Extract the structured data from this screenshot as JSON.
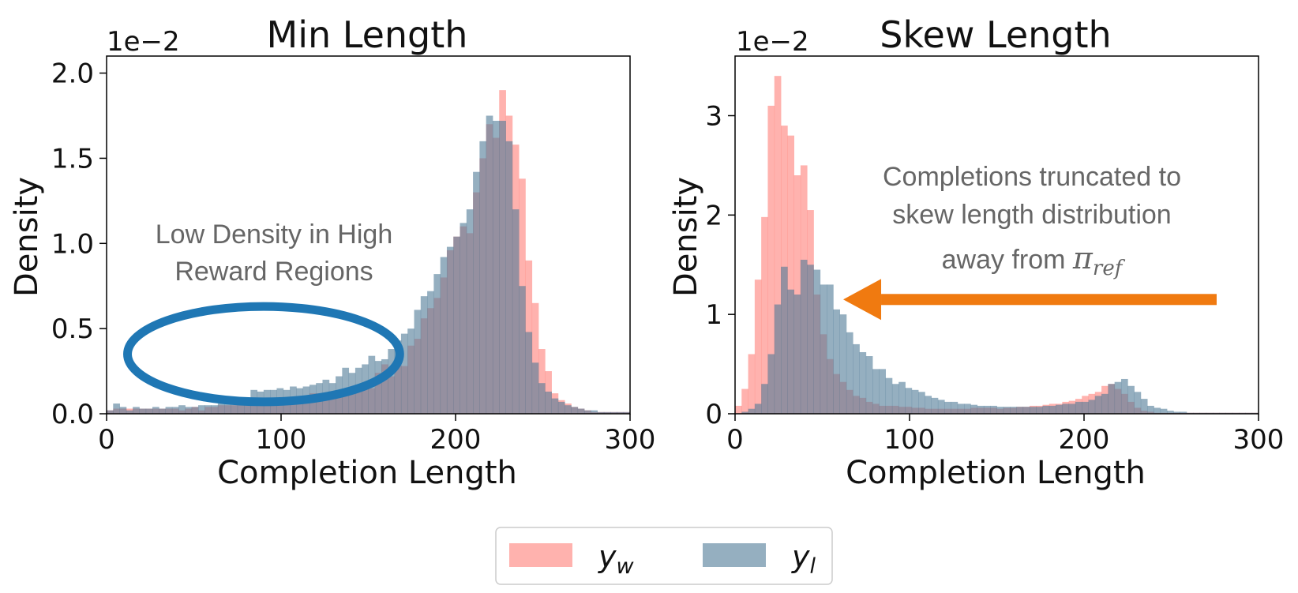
{
  "colors": {
    "yw": "#ff7f78",
    "yl": "#4f7a96",
    "ellipse": "#1f77b4",
    "arrow": "#f07a10",
    "annotation": "#666666"
  },
  "legend": {
    "placement": "bottom-center",
    "entries": [
      {
        "label_main": "y",
        "label_sub": "w"
      },
      {
        "label_main": "y",
        "label_sub": "l"
      }
    ]
  },
  "chart_data": [
    {
      "type": "histogram",
      "title": "Min Length",
      "xlabel": "Completion Length",
      "ylabel": "Density",
      "exponent_label": "1e−2",
      "xlim": [
        0,
        300
      ],
      "ylim": [
        0,
        2.1
      ],
      "bin_width": 3.75,
      "xticks": [
        0,
        100,
        200,
        300
      ],
      "yticks": [
        "0.0",
        "0.5",
        "1.0",
        "1.5",
        "2.0"
      ],
      "ytick_values": [
        0,
        0.5,
        1.0,
        1.5,
        2.0
      ],
      "grid": false,
      "annotation": {
        "text_lines": [
          "Low Density in High",
          "Reward Regions"
        ],
        "ellipse_center": [
          90,
          0.35
        ],
        "ellipse_radius": [
          78,
          0.28
        ]
      },
      "series": [
        {
          "name": "y_w",
          "values": [
            0.02,
            0.03,
            0.03,
            0.03,
            0.03,
            0.03,
            0.03,
            0.03,
            0.03,
            0.03,
            0.03,
            0.02,
            0.03,
            0.04,
            0.02,
            0.04,
            0.04,
            0.05,
            0.05,
            0.05,
            0.05,
            0.05,
            0.07,
            0.06,
            0.07,
            0.07,
            0.09,
            0.06,
            0.09,
            0.08,
            0.1,
            0.12,
            0.12,
            0.11,
            0.12,
            0.1,
            0.13,
            0.14,
            0.16,
            0.15,
            0.15,
            0.24,
            0.29,
            0.22,
            0.3,
            0.28,
            0.4,
            0.44,
            0.56,
            0.62,
            0.68,
            0.8,
            0.96,
            1.04,
            1.1,
            1.06,
            1.3,
            1.5,
            1.7,
            1.62,
            1.9,
            1.75,
            1.58,
            1.38,
            0.9,
            0.65,
            0.38,
            0.25,
            0.12,
            0.08,
            0.06,
            0.04,
            0.03,
            0.02,
            0.01,
            0.01,
            0.01,
            0.01,
            0.01,
            0.01
          ]
        },
        {
          "name": "y_l",
          "values": [
            0.02,
            0.06,
            0.04,
            0.02,
            0.04,
            0.03,
            0.03,
            0.04,
            0.03,
            0.04,
            0.04,
            0.05,
            0.04,
            0.04,
            0.05,
            0.05,
            0.05,
            0.06,
            0.07,
            0.07,
            0.07,
            0.09,
            0.14,
            0.13,
            0.14,
            0.14,
            0.15,
            0.14,
            0.16,
            0.15,
            0.16,
            0.17,
            0.18,
            0.2,
            0.18,
            0.22,
            0.27,
            0.24,
            0.27,
            0.29,
            0.34,
            0.31,
            0.32,
            0.38,
            0.43,
            0.47,
            0.5,
            0.61,
            0.69,
            0.72,
            0.82,
            0.92,
            0.98,
            1.04,
            1.12,
            1.2,
            1.42,
            1.6,
            1.75,
            1.72,
            1.72,
            1.6,
            1.2,
            0.75,
            0.48,
            0.3,
            0.18,
            0.13,
            0.09,
            0.07,
            0.05,
            0.04,
            0.03,
            0.02,
            0.02,
            0.01,
            0.01,
            0.01,
            0.01,
            0.01
          ]
        }
      ]
    },
    {
      "type": "histogram",
      "title": "Skew Length",
      "xlabel": "Completion Length",
      "ylabel": "Density",
      "exponent_label": "1e−2",
      "xlim": [
        0,
        300
      ],
      "ylim": [
        0,
        3.6
      ],
      "bin_width": 3.75,
      "xticks": [
        0,
        100,
        200,
        300
      ],
      "yticks": [
        "0",
        "1",
        "2",
        "3"
      ],
      "ytick_values": [
        0,
        1,
        2,
        3
      ],
      "grid": false,
      "annotation": {
        "text_lines": [
          "Completions truncated to",
          "skew length distribution",
          "away from "
        ],
        "symbol_main": "π",
        "symbol_sub": "ref",
        "arrow_from": [
          276,
          1.15
        ],
        "arrow_to": [
          62,
          1.15
        ]
      },
      "series": [
        {
          "name": "y_w",
          "values": [
            0.08,
            0.25,
            0.6,
            1.35,
            1.98,
            3.1,
            3.4,
            2.9,
            2.8,
            2.4,
            2.5,
            2.05,
            1.2,
            0.8,
            0.55,
            0.4,
            0.32,
            0.24,
            0.18,
            0.16,
            0.12,
            0.1,
            0.08,
            0.08,
            0.08,
            0.07,
            0.07,
            0.06,
            0.06,
            0.05,
            0.05,
            0.05,
            0.05,
            0.05,
            0.05,
            0.05,
            0.06,
            0.06,
            0.06,
            0.06,
            0.05,
            0.06,
            0.06,
            0.07,
            0.07,
            0.08,
            0.08,
            0.09,
            0.1,
            0.1,
            0.12,
            0.13,
            0.15,
            0.18,
            0.2,
            0.22,
            0.28,
            0.3,
            0.25,
            0.2,
            0.12,
            0.06,
            0.03,
            0.02,
            0.01,
            0.01,
            0.01,
            0.01,
            0.01,
            0.01,
            0.01,
            0.01,
            0.01,
            0.01,
            0.01,
            0.01,
            0.01,
            0.01,
            0.01,
            0.01
          ]
        },
        {
          "name": "y_l",
          "values": [
            0.0,
            0.02,
            0.05,
            0.1,
            0.3,
            0.6,
            1.1,
            1.48,
            1.25,
            1.2,
            1.55,
            1.5,
            1.45,
            1.3,
            1.3,
            1.05,
            1.0,
            0.82,
            0.7,
            0.62,
            0.58,
            0.45,
            0.45,
            0.36,
            0.3,
            0.32,
            0.26,
            0.24,
            0.22,
            0.18,
            0.16,
            0.14,
            0.12,
            0.12,
            0.1,
            0.1,
            0.09,
            0.08,
            0.08,
            0.08,
            0.07,
            0.07,
            0.07,
            0.07,
            0.07,
            0.07,
            0.07,
            0.08,
            0.08,
            0.09,
            0.1,
            0.1,
            0.12,
            0.12,
            0.14,
            0.18,
            0.2,
            0.3,
            0.32,
            0.35,
            0.28,
            0.22,
            0.15,
            0.08,
            0.06,
            0.05,
            0.03,
            0.02,
            0.02,
            0.01,
            0.01,
            0.01,
            0.01,
            0.01,
            0.01,
            0.01,
            0.01,
            0.01,
            0.01,
            0.01
          ]
        }
      ]
    }
  ]
}
